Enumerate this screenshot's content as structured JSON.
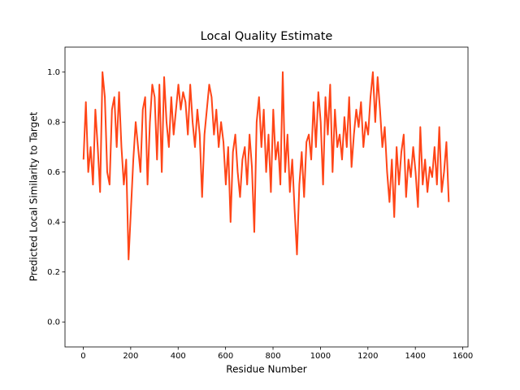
{
  "chart_data": {
    "type": "line",
    "title": "Local Quality Estimate",
    "xlabel": "Residue Number",
    "ylabel": "Predicted Local Similarity to Target",
    "color": "#ff4517",
    "x": [
      1,
      11,
      21,
      31,
      41,
      51,
      61,
      71,
      81,
      91,
      101,
      111,
      121,
      131,
      141,
      151,
      161,
      171,
      181,
      191,
      201,
      211,
      221,
      231,
      241,
      251,
      261,
      271,
      281,
      291,
      301,
      311,
      321,
      331,
      341,
      351,
      361,
      371,
      381,
      391,
      401,
      411,
      421,
      431,
      441,
      451,
      461,
      471,
      481,
      491,
      501,
      511,
      521,
      531,
      541,
      551,
      561,
      571,
      581,
      591,
      601,
      611,
      621,
      631,
      641,
      651,
      661,
      671,
      681,
      691,
      701,
      711,
      721,
      731,
      741,
      751,
      761,
      771,
      781,
      791,
      801,
      811,
      821,
      831,
      841,
      851,
      861,
      871,
      881,
      891,
      901,
      911,
      921,
      931,
      941,
      951,
      961,
      971,
      981,
      991,
      1001,
      1011,
      1021,
      1031,
      1041,
      1051,
      1061,
      1071,
      1081,
      1091,
      1101,
      1111,
      1121,
      1131,
      1141,
      1151,
      1161,
      1171,
      1181,
      1191,
      1201,
      1211,
      1221,
      1231,
      1241,
      1251,
      1261,
      1271,
      1281,
      1291,
      1301,
      1311,
      1321,
      1331,
      1341,
      1351,
      1361,
      1371,
      1381,
      1391,
      1401,
      1411,
      1421,
      1431,
      1441,
      1451,
      1461,
      1471,
      1481,
      1491,
      1501,
      1511,
      1521,
      1531,
      1541
    ],
    "values": [
      0.65,
      0.88,
      0.6,
      0.7,
      0.55,
      0.85,
      0.7,
      0.52,
      1.0,
      0.9,
      0.6,
      0.55,
      0.85,
      0.9,
      0.7,
      0.92,
      0.7,
      0.55,
      0.65,
      0.25,
      0.45,
      0.65,
      0.8,
      0.7,
      0.6,
      0.85,
      0.9,
      0.55,
      0.8,
      0.95,
      0.9,
      0.65,
      0.95,
      0.6,
      0.98,
      0.8,
      0.7,
      0.9,
      0.75,
      0.85,
      0.95,
      0.85,
      0.92,
      0.88,
      0.75,
      0.95,
      0.8,
      0.7,
      0.85,
      0.75,
      0.5,
      0.75,
      0.85,
      0.95,
      0.9,
      0.75,
      0.85,
      0.7,
      0.8,
      0.72,
      0.55,
      0.7,
      0.4,
      0.68,
      0.75,
      0.6,
      0.5,
      0.65,
      0.7,
      0.55,
      0.75,
      0.62,
      0.36,
      0.8,
      0.9,
      0.7,
      0.85,
      0.6,
      0.75,
      0.52,
      0.85,
      0.65,
      0.72,
      0.55,
      1.0,
      0.6,
      0.75,
      0.52,
      0.65,
      0.45,
      0.27,
      0.55,
      0.68,
      0.5,
      0.72,
      0.75,
      0.65,
      0.88,
      0.7,
      0.92,
      0.8,
      0.55,
      0.9,
      0.75,
      0.95,
      0.6,
      0.85,
      0.7,
      0.75,
      0.65,
      0.82,
      0.7,
      0.9,
      0.62,
      0.75,
      0.85,
      0.78,
      0.88,
      0.7,
      0.8,
      0.75,
      0.9,
      1.0,
      0.8,
      0.98,
      0.85,
      0.7,
      0.78,
      0.6,
      0.48,
      0.65,
      0.42,
      0.7,
      0.55,
      0.68,
      0.75,
      0.5,
      0.65,
      0.58,
      0.7,
      0.6,
      0.46,
      0.78,
      0.55,
      0.65,
      0.52,
      0.62,
      0.58,
      0.7,
      0.55,
      0.78,
      0.52,
      0.6,
      0.72,
      0.48
    ],
    "xlim": [
      -77,
      1622
    ],
    "ylim": [
      -0.1,
      1.1
    ],
    "xticks": [
      0,
      200,
      400,
      600,
      800,
      1000,
      1200,
      1400,
      1600
    ],
    "yticks": [
      {
        "value": 0,
        "label": "0.0"
      },
      0.2,
      0.4,
      0.6,
      0.8,
      {
        "value": 1,
        "label": "1.0"
      }
    ]
  }
}
